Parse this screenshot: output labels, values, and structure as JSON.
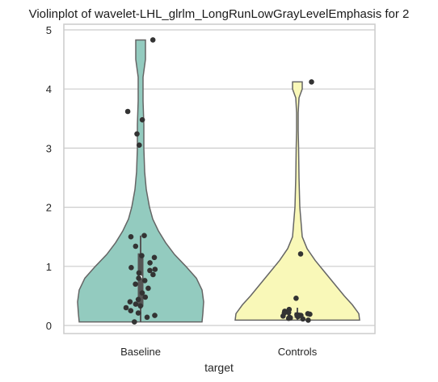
{
  "chart_data": {
    "type": "violin",
    "title": "Violinplot of wavelet-LHL_glrlm_LongRunLowGrayLevelEmphasis for 2",
    "xlabel": "target",
    "ylabel": "",
    "categories": [
      "Baseline",
      "Controls"
    ],
    "ylim": [
      -0.15,
      5.1
    ],
    "yticks": [
      0,
      1,
      2,
      3,
      4,
      5
    ],
    "grid": "horizontal",
    "colors": {
      "Baseline": "#93cbbf",
      "Controls": "#f9f8b8",
      "outline": "#656565",
      "points": "#333333",
      "box": "#555555",
      "grid": "#cccccc"
    },
    "series": [
      {
        "name": "Baseline",
        "range": [
          0.06,
          4.83
        ],
        "box": {
          "q1": 0.32,
          "median": 0.82,
          "q3": 1.22,
          "whisker_low": 0.06,
          "whisker_high": 1.52
        },
        "points": [
          4.83,
          3.62,
          3.48,
          3.24,
          3.05,
          1.52,
          1.5,
          1.34,
          1.18,
          1.15,
          1.06,
          0.98,
          0.95,
          0.93,
          0.89,
          0.86,
          0.8,
          0.76,
          0.7,
          0.63,
          0.55,
          0.48,
          0.44,
          0.4,
          0.36,
          0.33,
          0.3,
          0.25,
          0.21,
          0.17,
          0.14,
          0.06
        ]
      },
      {
        "name": "Controls",
        "range": [
          0.09,
          4.12
        ],
        "box": {
          "q1": 0.13,
          "median": 0.17,
          "q3": 0.22,
          "whisker_low": 0.09,
          "whisker_high": 0.3
        },
        "points": [
          4.12,
          1.21,
          0.46,
          0.27,
          0.24,
          0.22,
          0.21,
          0.2,
          0.19,
          0.18,
          0.17,
          0.16,
          0.15,
          0.14,
          0.13,
          0.12,
          0.11,
          0.09
        ]
      }
    ]
  }
}
